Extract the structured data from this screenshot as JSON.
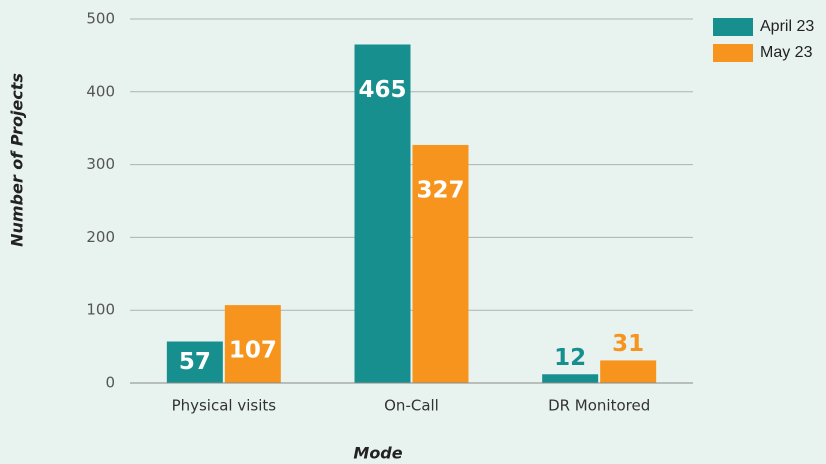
{
  "chart_data": {
    "type": "bar",
    "x_label": "Mode",
    "y_label": "Number of Projects",
    "categories": [
      "Physical visits",
      "On-Call",
      "DR Monitored"
    ],
    "series": [
      {
        "name": "April 23",
        "color": "#178f8f",
        "values": [
          57,
          465,
          12
        ]
      },
      {
        "name": "May 23",
        "color": "#f7941d",
        "values": [
          107,
          327,
          31
        ]
      }
    ],
    "ylim": [
      0,
      500
    ],
    "yticks": [
      0,
      100,
      200,
      300,
      400,
      500
    ],
    "grid": true,
    "legend": "top-right"
  }
}
